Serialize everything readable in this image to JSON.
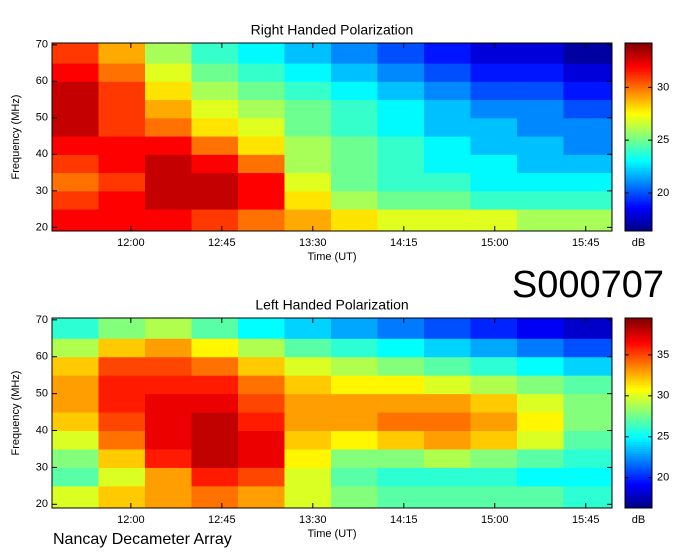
{
  "chart_data": [
    {
      "type": "heatmap",
      "title": "Right Handed Polarization",
      "xlabel": "Time (UT)",
      "ylabel": "Frequency (MHz)",
      "x_edges": [
        681,
        704,
        727,
        750,
        773,
        796,
        819,
        842,
        865,
        888,
        911,
        934,
        958
      ],
      "y_edges": [
        19,
        25,
        30,
        35,
        40,
        45,
        50,
        55,
        60,
        65,
        70.5
      ],
      "values": [
        [
          32,
          32,
          32,
          31,
          30,
          29,
          28,
          27,
          27,
          27,
          26,
          26
        ],
        [
          31,
          32,
          33,
          33,
          32,
          28,
          26,
          25,
          25,
          24,
          24,
          24
        ],
        [
          30,
          31,
          33,
          33,
          32,
          27,
          25,
          24,
          24,
          23,
          23,
          23
        ],
        [
          31,
          32,
          33,
          32,
          30,
          26,
          25,
          24,
          23,
          23,
          22,
          22
        ],
        [
          32,
          32,
          32,
          30,
          28,
          26,
          25,
          24,
          23,
          22,
          22,
          21
        ],
        [
          33,
          31,
          30,
          28,
          27,
          25,
          24,
          23,
          22,
          22,
          21,
          21
        ],
        [
          33,
          31,
          29,
          27,
          26,
          25,
          24,
          23,
          22,
          21,
          21,
          20
        ],
        [
          33,
          31,
          28,
          26,
          25,
          24,
          23,
          22,
          21,
          20,
          20,
          19
        ],
        [
          32,
          30,
          27,
          25,
          24,
          23,
          22,
          21,
          20,
          19,
          19,
          18
        ],
        [
          31,
          29,
          26,
          24,
          23,
          22,
          21,
          20,
          19,
          18,
          18,
          17
        ]
      ],
      "xlim": [
        681,
        958
      ],
      "ylim": [
        19,
        70.5
      ],
      "xticks": [
        {
          "value": 720,
          "label": "12:00"
        },
        {
          "value": 765,
          "label": "12:45"
        },
        {
          "value": 810,
          "label": "13:30"
        },
        {
          "value": 855,
          "label": "14:15"
        },
        {
          "value": 900,
          "label": "15:00"
        },
        {
          "value": 945,
          "label": "15:45"
        }
      ],
      "yticks": [
        20,
        30,
        40,
        50,
        60,
        70
      ],
      "colormap": "jet",
      "clim": [
        16.4,
        34.2
      ],
      "cticks": [
        20,
        25,
        30
      ],
      "clabel": "dB"
    },
    {
      "type": "heatmap",
      "title": "Left Handed Polarization",
      "xlabel": "Time (UT)",
      "ylabel": "Frequency (MHz)",
      "x_edges": [
        681,
        704,
        727,
        750,
        773,
        796,
        819,
        842,
        865,
        888,
        911,
        934,
        958
      ],
      "y_edges": [
        19,
        25,
        30,
        35,
        40,
        45,
        50,
        55,
        60,
        65,
        70.5
      ],
      "values": [
        [
          30,
          32,
          33,
          34,
          33,
          30,
          28,
          27,
          27,
          27,
          27,
          26
        ],
        [
          27,
          30,
          33,
          36,
          35,
          30,
          27,
          26,
          26,
          26,
          25,
          25
        ],
        [
          28,
          32,
          36,
          38,
          37,
          31,
          28,
          28,
          29,
          28,
          27,
          26
        ],
        [
          30,
          34,
          37,
          38,
          37,
          32,
          31,
          32,
          33,
          32,
          30,
          27
        ],
        [
          32,
          35,
          37,
          38,
          36,
          33,
          33,
          34,
          34,
          33,
          31,
          28
        ],
        [
          33,
          36,
          37,
          37,
          35,
          33,
          33,
          33,
          33,
          32,
          30,
          28
        ],
        [
          33,
          36,
          36,
          36,
          34,
          32,
          31,
          31,
          30,
          29,
          28,
          27
        ],
        [
          32,
          35,
          35,
          34,
          32,
          30,
          29,
          28,
          27,
          26,
          25,
          24
        ],
        [
          29,
          32,
          33,
          31,
          29,
          27,
          26,
          25,
          24,
          23,
          22,
          21
        ],
        [
          26,
          28,
          29,
          27,
          25,
          24,
          23,
          22,
          21,
          20,
          19,
          18
        ]
      ],
      "xlim": [
        681,
        958
      ],
      "ylim": [
        19,
        70.5
      ],
      "xticks": [
        {
          "value": 720,
          "label": "12:00"
        },
        {
          "value": 765,
          "label": "12:45"
        },
        {
          "value": 810,
          "label": "13:30"
        },
        {
          "value": 855,
          "label": "14:15"
        },
        {
          "value": 900,
          "label": "15:00"
        },
        {
          "value": 945,
          "label": "15:45"
        }
      ],
      "yticks": [
        20,
        30,
        40,
        50,
        60,
        70
      ],
      "colormap": "jet",
      "clim": [
        16.3,
        39.5
      ],
      "cticks": [
        20,
        25,
        30,
        35
      ],
      "clabel": "dB"
    }
  ],
  "event_id": "S000707",
  "footer": "Nancay Decameter Array"
}
